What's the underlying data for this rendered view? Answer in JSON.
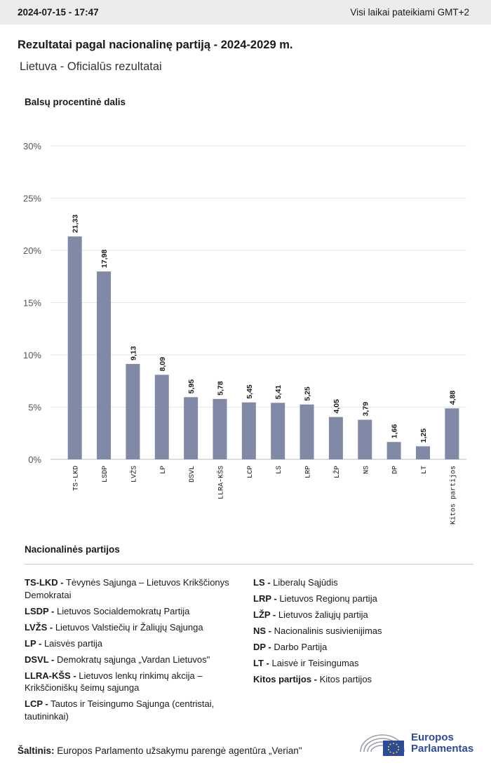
{
  "header": {
    "timestamp": "2024-07-15 - 17:47",
    "timezone_note": "Visi laikai pateikiami GMT+2"
  },
  "title": "Rezultatai pagal nacionalinę partiją - 2024-2029 m.",
  "subtitle": "Lietuva - Oficialūs rezultatai",
  "chart_data": {
    "type": "bar",
    "ylabel": "Balsų procentinė dalis",
    "xlabel": "",
    "ylim": [
      0,
      30
    ],
    "yticks": [
      "0%",
      "5%",
      "10%",
      "15%",
      "20%",
      "25%",
      "30%"
    ],
    "categories": [
      "TS-LKD",
      "LSDP",
      "LVŽS",
      "LP",
      "DSVL",
      "LLRA-KŠS",
      "LCP",
      "LS",
      "LRP",
      "LŽP",
      "NS",
      "DP",
      "LT",
      "Kitos partijos"
    ],
    "values": [
      21.33,
      17.98,
      9.13,
      8.09,
      5.95,
      5.78,
      5.45,
      5.41,
      5.25,
      4.05,
      3.79,
      1.66,
      1.25,
      4.88
    ],
    "value_labels": [
      "21,33",
      "17,98",
      "9,13",
      "8,09",
      "5,95",
      "5,78",
      "5,45",
      "5,41",
      "5,25",
      "4,05",
      "3,79",
      "1,66",
      "1,25",
      "4,88"
    ],
    "bar_color": "#8089a6",
    "grid": true
  },
  "legend": {
    "title": "Nacionalinės partijos",
    "left": [
      {
        "abbr": "TS-LKD -",
        "name": "Tėvynės Sąjunga – Lietuvos Krikščionys Demokratai"
      },
      {
        "abbr": "LSDP -",
        "name": "Lietuvos Socialdemokratų Partija"
      },
      {
        "abbr": "LVŽS -",
        "name": "Lietuvos Valstiečių ir Žaliųjų Sąjunga"
      },
      {
        "abbr": "LP -",
        "name": "Laisvės partija"
      },
      {
        "abbr": "DSVL -",
        "name": "Demokratų sąjunga „Vardan Lietuvos\""
      },
      {
        "abbr": "LLRA-KŠS -",
        "name": "Lietuvos lenkų rinkimų akcija – Krikščioniškų šeimų sąjunga"
      },
      {
        "abbr": "LCP -",
        "name": "Tautos ir Teisingumo Sąjunga (centristai, tautininkai)"
      }
    ],
    "right": [
      {
        "abbr": "LS -",
        "name": "Liberalų Sąjūdis"
      },
      {
        "abbr": "LRP -",
        "name": "Lietuvos Regionų partija"
      },
      {
        "abbr": "LŽP -",
        "name": "Lietuvos žaliųjų partija"
      },
      {
        "abbr": "NS -",
        "name": "Nacionalinis susivienijimas"
      },
      {
        "abbr": "DP -",
        "name": "Darbo Partija"
      },
      {
        "abbr": "LT -",
        "name": "Laisvė ir Teisingumas"
      },
      {
        "abbr": "Kitos partijos -",
        "name": "Kitos partijos"
      }
    ]
  },
  "source": {
    "label": "Šaltinis:",
    "text": "Europos Parlamento užsakymu parengė agentūra „Verian\""
  },
  "logo": {
    "line1": "Europos",
    "line2": "Parlamentas",
    "icon": "european-parliament-logo-icon"
  }
}
